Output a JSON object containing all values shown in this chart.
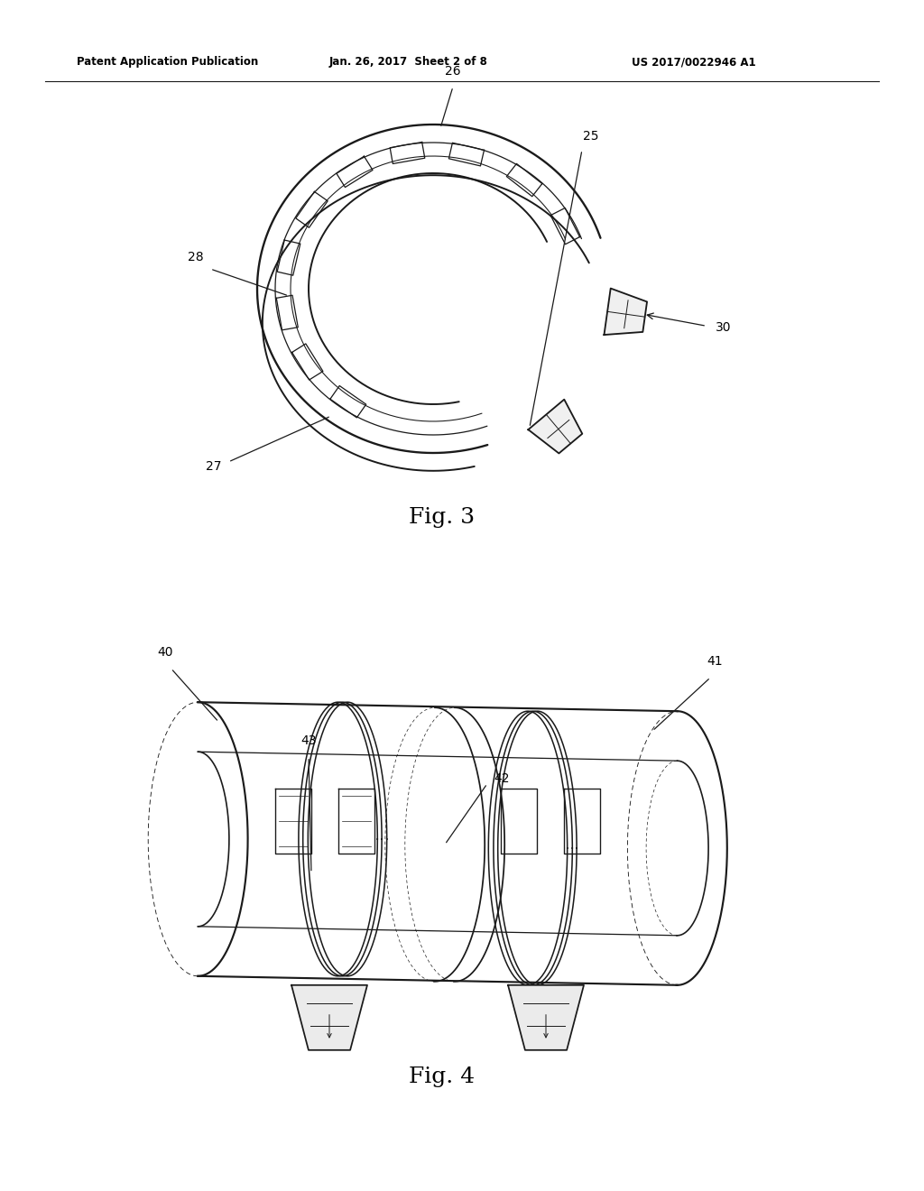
{
  "bg_color": "#ffffff",
  "header_text": "Patent Application Publication",
  "header_date": "Jan. 26, 2017  Sheet 2 of 8",
  "header_patent": "US 2017/0022946 A1",
  "fig3_label": "Fig. 3",
  "fig4_label": "Fig. 4",
  "line_color": "#1a1a1a",
  "line_width": 1.4,
  "text_color": "#000000"
}
